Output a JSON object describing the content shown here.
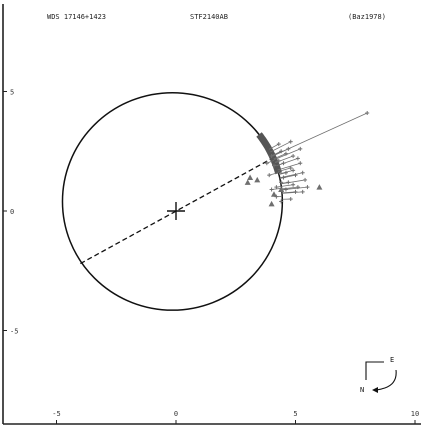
{
  "header": {
    "left": "WDS 17146+1423",
    "center": "STF2140AB",
    "right": "(Baz1978)"
  },
  "compass": {
    "north": "N",
    "east": "E"
  },
  "colors": {
    "ellipse": "#111111",
    "observations": "#6f6f6f",
    "model_arc": "#555555",
    "axis": "#222222",
    "background": "#ffffff"
  },
  "chart_data": {
    "type": "scatter",
    "title": "",
    "xlabel": "",
    "ylabel": "",
    "xlim": [
      -7.3,
      10.3
    ],
    "ylim": [
      -8.8,
      9
    ],
    "x_ticks": [
      -5,
      0,
      5,
      10
    ],
    "y_ticks": [
      5,
      0,
      -5
    ],
    "x_tick_labels": [
      "-5",
      "0",
      "5",
      "10"
    ],
    "y_tick_labels": [
      "5",
      "0",
      "-5"
    ],
    "grid": false,
    "primary": {
      "x": 0,
      "y": 0,
      "marker": "plus"
    },
    "orbit": {
      "center": [
        -0.15,
        0.4
      ],
      "axes": [
        4.6,
        4.55
      ],
      "color": "#111111"
    },
    "line_of_apsides": {
      "from": [
        -4.0,
        -2.2
      ],
      "to": [
        4.2,
        2.3
      ],
      "style": "dashed"
    },
    "micrometer_measures": [
      [
        4.4,
        2.5
      ],
      [
        4.6,
        2.4
      ],
      [
        4.9,
        2.3
      ],
      [
        5.2,
        2.0
      ],
      [
        4.3,
        2.1
      ],
      [
        4.8,
        1.8
      ],
      [
        5.0,
        1.5
      ],
      [
        4.5,
        1.4
      ],
      [
        5.3,
        1.6
      ],
      [
        4.1,
        1.9
      ],
      [
        4.7,
        2.6
      ],
      [
        5.1,
        2.2
      ],
      [
        4.4,
        1.2
      ],
      [
        4.9,
        1.1
      ],
      [
        5.4,
        1.3
      ],
      [
        4.2,
        1.0
      ],
      [
        4.6,
        0.9
      ],
      [
        5.0,
        0.8
      ],
      [
        4.3,
        2.8
      ],
      [
        4.8,
        2.9
      ],
      [
        3.9,
        1.5
      ],
      [
        5.5,
        1.0
      ],
      [
        4.0,
        2.3
      ],
      [
        4.5,
        2.0
      ],
      [
        5.2,
        2.6
      ],
      [
        4.7,
        1.2
      ],
      [
        5.3,
        0.8
      ],
      [
        3.8,
        2.0
      ],
      [
        4.9,
        1.7
      ],
      [
        4.6,
        1.6
      ],
      [
        4.2,
        0.6
      ],
      [
        4.4,
        0.4
      ],
      [
        5.1,
        1.0
      ],
      [
        4.0,
        0.9
      ],
      [
        4.8,
        0.5
      ],
      [
        8.0,
        4.1
      ]
    ],
    "triangle_measures": [
      [
        3.0,
        1.2
      ],
      [
        6.0,
        1.0
      ],
      [
        3.1,
        1.4
      ],
      [
        4.0,
        0.3
      ],
      [
        4.1,
        0.7
      ],
      [
        4.4,
        0.9
      ],
      [
        3.4,
        1.3
      ]
    ],
    "model_arc": {
      "from_angle_deg": 15,
      "to_angle_deg": 38
    }
  }
}
